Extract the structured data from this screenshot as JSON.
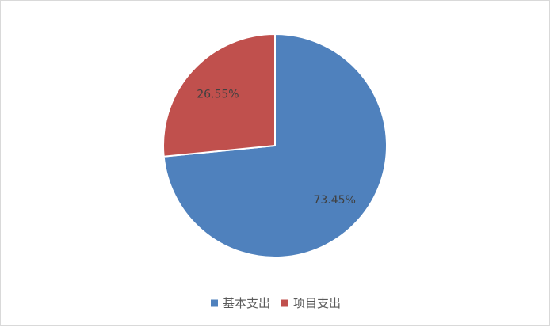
{
  "chart_data": {
    "type": "pie",
    "categories": [
      "基本支出",
      "项目支出"
    ],
    "values": [
      73.45,
      26.55
    ],
    "value_labels": [
      "73.45%",
      "26.55%"
    ],
    "colors": [
      "#4f81bd",
      "#c0504d"
    ],
    "legend": "bottom-center"
  }
}
